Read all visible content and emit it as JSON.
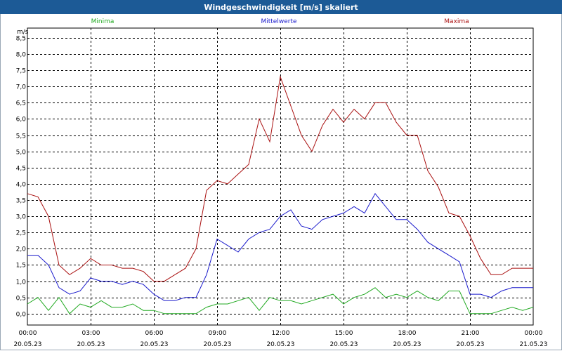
{
  "window": {
    "title": "Windgeschwindigkeit [m/s] skaliert"
  },
  "chart_data": {
    "type": "line",
    "title": "Windgeschwindigkeit [m/s] skaliert",
    "ylabel": "m/s",
    "ylim": [
      -0.35,
      8.8
    ],
    "ytick_labels": [
      "0,0",
      "0,5",
      "1,0",
      "1,5",
      "2,0",
      "2,5",
      "3,0",
      "3,5",
      "4,0",
      "4,5",
      "5,0",
      "5,5",
      "6,0",
      "6,5",
      "7,0",
      "7,5",
      "8,0",
      "8,5"
    ],
    "x_ticks": [
      {
        "time": "00:00",
        "date": "20.05.23"
      },
      {
        "time": "03:00",
        "date": "20.05.23"
      },
      {
        "time": "06:00",
        "date": "20.05.23"
      },
      {
        "time": "09:00",
        "date": "20.05.23"
      },
      {
        "time": "12:00",
        "date": "20.05.23"
      },
      {
        "time": "15:00",
        "date": "20.05.23"
      },
      {
        "time": "18:00",
        "date": "20.05.23"
      },
      {
        "time": "21:00",
        "date": "20.05.23"
      },
      {
        "time": "00:00",
        "date": "21.05.23"
      }
    ],
    "x_hours": [
      0,
      0.5,
      1,
      1.5,
      2,
      2.5,
      3,
      3.5,
      4,
      4.5,
      5,
      5.5,
      6,
      6.5,
      7,
      7.5,
      8,
      8.5,
      9,
      9.5,
      10,
      10.5,
      11,
      11.5,
      12,
      12.5,
      13,
      13.5,
      14,
      14.5,
      15,
      15.5,
      16,
      16.5,
      17,
      17.5,
      18,
      18.5,
      19,
      19.5,
      20,
      20.5,
      21,
      21.5,
      22,
      22.5,
      23,
      23.5,
      24
    ],
    "grid": true,
    "series": [
      {
        "name": "Minima",
        "color": "#22aa22",
        "values": [
          0.3,
          0.5,
          0.1,
          0.5,
          0.0,
          0.3,
          0.2,
          0.4,
          0.2,
          0.2,
          0.3,
          0.1,
          0.1,
          0.0,
          0.0,
          0.0,
          0.0,
          0.2,
          0.3,
          0.3,
          0.4,
          0.5,
          0.1,
          0.5,
          0.4,
          0.4,
          0.3,
          0.4,
          0.5,
          0.6,
          0.3,
          0.5,
          0.6,
          0.8,
          0.5,
          0.6,
          0.5,
          0.7,
          0.5,
          0.4,
          0.7,
          0.7,
          0.0,
          0.0,
          0.0,
          0.1,
          0.2,
          0.1,
          0.2
        ]
      },
      {
        "name": "Mittelwerte",
        "color": "#1a1acc",
        "values": [
          1.8,
          1.8,
          1.5,
          0.8,
          0.6,
          0.7,
          1.1,
          1.0,
          1.0,
          0.9,
          1.0,
          0.9,
          0.6,
          0.4,
          0.4,
          0.5,
          0.5,
          1.2,
          2.3,
          2.1,
          1.9,
          2.3,
          2.5,
          2.6,
          3.0,
          3.2,
          2.7,
          2.6,
          2.9,
          3.0,
          3.1,
          3.3,
          3.1,
          3.7,
          3.3,
          2.9,
          2.9,
          2.6,
          2.2,
          2.0,
          1.8,
          1.6,
          0.6,
          0.6,
          0.5,
          0.7,
          0.8,
          0.8,
          0.8
        ]
      },
      {
        "name": "Maxima",
        "color": "#aa1111",
        "values": [
          3.7,
          3.6,
          3.0,
          1.5,
          1.2,
          1.4,
          1.7,
          1.5,
          1.5,
          1.4,
          1.4,
          1.3,
          1.0,
          1.0,
          1.2,
          1.4,
          2.0,
          3.8,
          4.1,
          4.0,
          4.3,
          4.6,
          6.0,
          5.3,
          7.3,
          6.4,
          5.5,
          5.0,
          5.8,
          6.3,
          5.9,
          6.3,
          6.0,
          6.5,
          6.5,
          5.9,
          5.5,
          5.5,
          4.4,
          3.9,
          3.1,
          3.0,
          2.4,
          1.7,
          1.2,
          1.2,
          1.4,
          1.4,
          1.4
        ]
      }
    ]
  }
}
